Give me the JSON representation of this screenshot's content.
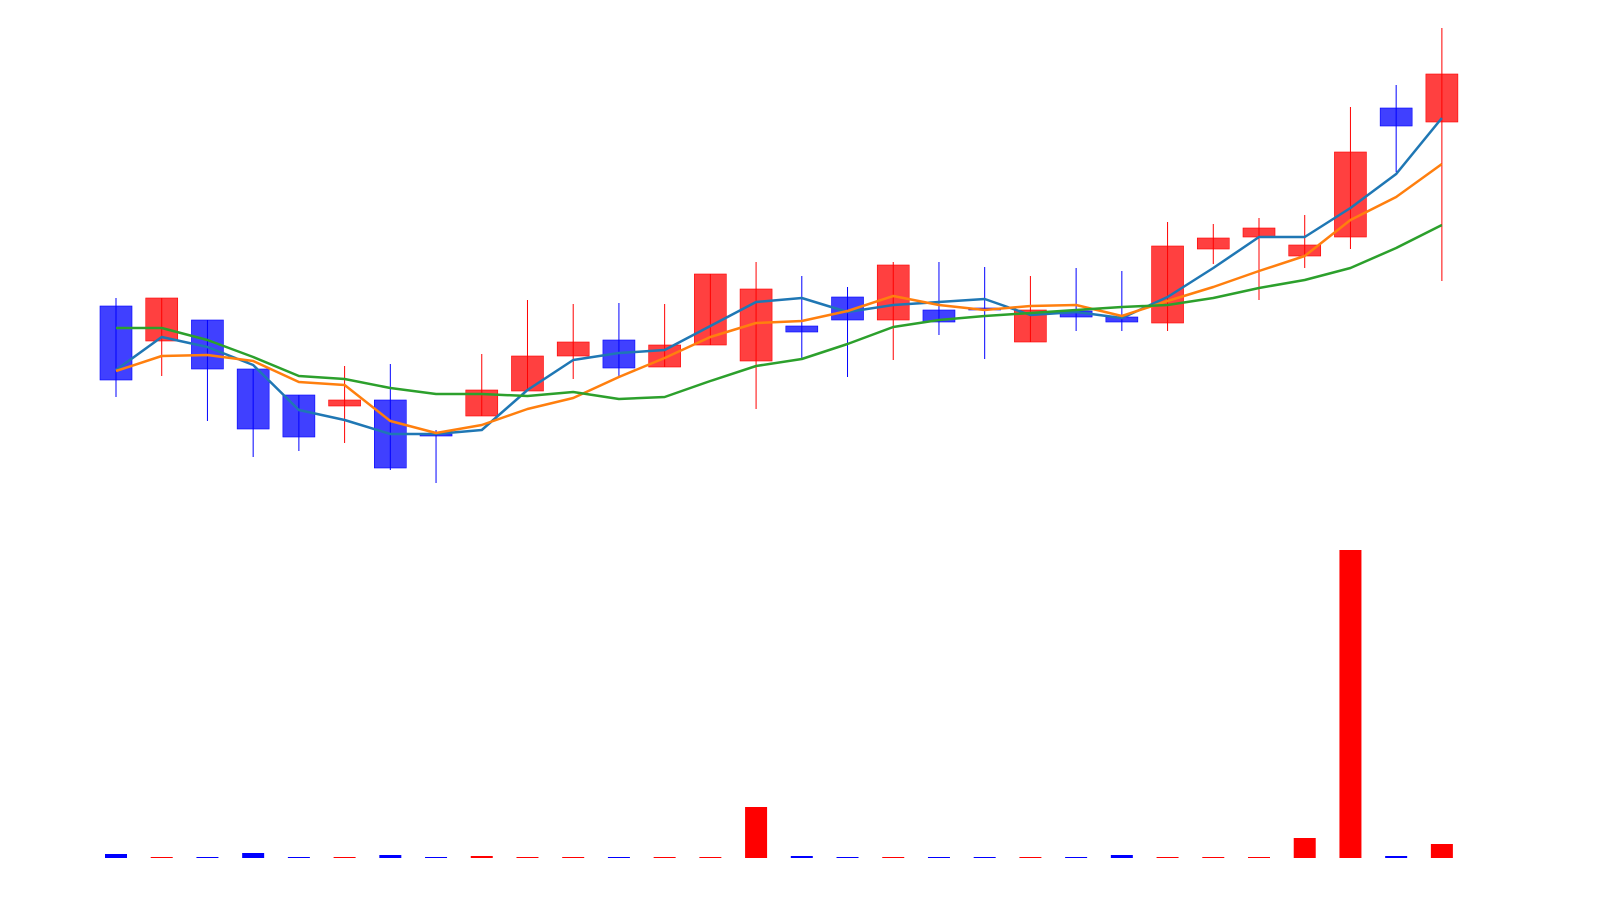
{
  "chart_data": [
    {
      "type": "candlestick",
      "up_color": "#ff0000",
      "down_color": "#0000ff",
      "open": [
        69.4,
        65.9,
        68.0,
        63.1,
        60.5,
        59.4,
        60.0,
        56.6,
        58.4,
        60.9,
        64.4,
        66.0,
        63.3,
        65.5,
        63.9,
        67.4,
        70.3,
        68.0,
        69.0,
        69.2,
        65.8,
        68.9,
        68.3,
        67.7,
        75.1,
        76.3,
        74.4,
        76.3,
        89.2,
        87.8
      ],
      "high": [
        70.2,
        70.2,
        68.0,
        63.1,
        60.5,
        63.4,
        63.6,
        57.0,
        64.6,
        70.0,
        69.6,
        69.7,
        69.6,
        72.6,
        73.8,
        72.4,
        71.3,
        73.8,
        73.8,
        73.3,
        72.4,
        73.2,
        72.9,
        77.8,
        77.6,
        78.2,
        78.5,
        89.3,
        91.5,
        97.2
      ],
      "low": [
        60.3,
        62.4,
        57.9,
        54.3,
        54.9,
        55.7,
        53.0,
        51.7,
        58.4,
        60.9,
        62.1,
        62.3,
        63.3,
        65.5,
        59.1,
        64.2,
        62.3,
        64.0,
        66.5,
        64.1,
        65.8,
        66.9,
        66.9,
        66.9,
        73.6,
        70.0,
        73.2,
        75.1,
        82.8,
        71.9
      ],
      "close": [
        62.0,
        70.2,
        63.1,
        57.1,
        56.3,
        60.0,
        53.2,
        56.4,
        61.0,
        64.4,
        65.8,
        63.2,
        65.5,
        72.6,
        71.1,
        66.8,
        68.0,
        73.5,
        67.8,
        69.0,
        69.0,
        68.3,
        67.8,
        75.4,
        76.2,
        77.2,
        75.5,
        84.8,
        87.4,
        92.6
      ],
      "ma": [
        {
          "color": "#1f77b4",
          "values": [
            63.0,
            66.3,
            65.3,
            63.5,
            59.0,
            58.0,
            56.6,
            56.6,
            57.0,
            61.0,
            64.0,
            64.7,
            65.0,
            67.4,
            69.8,
            70.2,
            68.8,
            69.5,
            69.8,
            70.1,
            68.5,
            68.8,
            68.2,
            70.3,
            73.2,
            76.3,
            76.3,
            79.2,
            82.6,
            88.2
          ]
        },
        {
          "color": "#ff7f0e",
          "values": [
            62.9,
            64.4,
            64.5,
            63.9,
            61.8,
            61.5,
            57.9,
            56.7,
            57.5,
            59.1,
            60.2,
            62.3,
            64.2,
            66.3,
            67.7,
            67.9,
            68.9,
            70.4,
            69.5,
            69.0,
            69.4,
            69.5,
            68.4,
            69.9,
            71.3,
            72.9,
            74.4,
            78.0,
            80.3,
            83.6
          ]
        },
        {
          "color": "#2ca02c",
          "values": [
            67.2,
            67.2,
            66.0,
            64.3,
            62.4,
            62.1,
            61.2,
            60.6,
            60.6,
            60.4,
            60.8,
            60.1,
            60.3,
            61.9,
            63.4,
            64.1,
            65.6,
            67.3,
            68.0,
            68.4,
            68.7,
            69.0,
            69.3,
            69.5,
            70.2,
            71.2,
            72.0,
            73.2,
            75.2,
            77.5
          ]
        }
      ],
      "ylim": [
        50,
        100
      ]
    },
    {
      "type": "bar",
      "values": [
        4,
        1,
        1,
        5,
        1,
        1,
        3,
        1,
        2,
        1,
        1,
        1,
        1,
        1,
        51,
        2,
        1,
        1,
        1,
        1,
        1,
        1,
        3,
        1,
        1,
        1,
        20,
        308,
        2,
        14
      ],
      "ylim": [
        0,
        318
      ]
    }
  ]
}
